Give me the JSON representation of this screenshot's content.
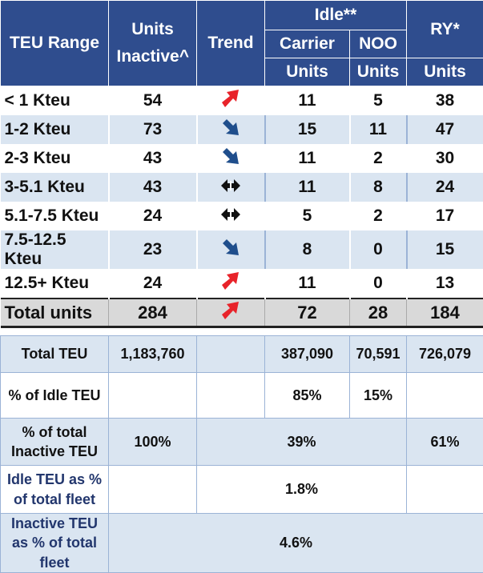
{
  "header": {
    "teu_range": "TEU Range",
    "units_inactive": "Units Inactive^",
    "trend": "Trend",
    "idle": "Idle**",
    "ry": "RY*",
    "carrier": "Carrier",
    "noo": "NOO",
    "units_carrier": "Units",
    "units_noo": "Units",
    "units_ry": "Units"
  },
  "rows": [
    {
      "range": "< 1 Kteu",
      "inactive": "54",
      "trend": "up-arrow",
      "carrier": "11",
      "noo": "5",
      "ry": "38"
    },
    {
      "range": "1-2 Kteu",
      "inactive": "73",
      "trend": "down-arrow",
      "carrier": "15",
      "noo": "11",
      "ry": "47"
    },
    {
      "range": "2-3 Kteu",
      "inactive": "43",
      "trend": "down-arrow",
      "carrier": "11",
      "noo": "2",
      "ry": "30"
    },
    {
      "range": "3-5.1 Kteu",
      "inactive": "43",
      "trend": "flat-arrow",
      "carrier": "11",
      "noo": "8",
      "ry": "24"
    },
    {
      "range": "5.1-7.5 Kteu",
      "inactive": "24",
      "trend": "flat-arrow",
      "carrier": "5",
      "noo": "2",
      "ry": "17"
    },
    {
      "range": "7.5-12.5 Kteu",
      "inactive": "23",
      "trend": "down-arrow",
      "carrier": "8",
      "noo": "0",
      "ry": "15"
    },
    {
      "range": "12.5+ Kteu",
      "inactive": "24",
      "trend": "up-arrow",
      "carrier": "11",
      "noo": "0",
      "ry": "13"
    }
  ],
  "total": {
    "label": "Total units",
    "inactive": "284",
    "trend": "up-arrow",
    "carrier": "72",
    "noo": "28",
    "ry": "184"
  },
  "summary": {
    "total_teu_label": "Total TEU",
    "total_teu": "1,183,760",
    "carrier_teu": "387,090",
    "noo_teu": "70,591",
    "ry_teu": "726,079",
    "pct_idle_label": "% of Idle TEU",
    "pct_idle_carrier": "85%",
    "pct_idle_noo": "15%",
    "pct_total_inactive_label": "% of total Inactive TEU",
    "pct_total_inactive": "100%",
    "pct_total_inactive_idle": "39%",
    "pct_total_inactive_ry": "61%",
    "idle_pct_fleet_label": "Idle TEU as % of total fleet",
    "idle_pct_fleet": "1.8%",
    "inactive_pct_fleet_label": "Inactive TEU as % of total fleet",
    "inactive_pct_fleet": "4.6%"
  },
  "colors": {
    "header_bg": "#2f4d8e",
    "band": "#dae5f1",
    "up": "#e8232a",
    "down": "#1f4e8c",
    "flat": "#111111"
  }
}
